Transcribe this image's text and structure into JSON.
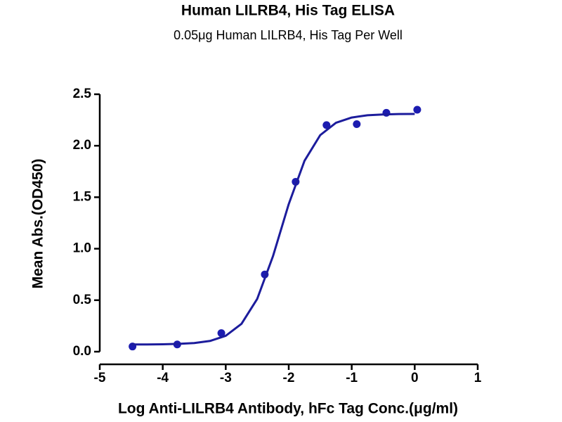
{
  "chart_data": {
    "type": "scatter",
    "title": "Human LILRB4, His Tag ELISA",
    "subtitle": "0.05μg Human LILRB4, His Tag Per Well",
    "x_label": "Log Anti-LILRB4 Antibody, hFc Tag Conc.(μg/ml)",
    "y_label": "Mean Abs.(OD450)",
    "xlim": [
      -5,
      1
    ],
    "ylim": [
      0,
      2.5
    ],
    "xticks": [
      -5,
      -4,
      -3,
      -2,
      -1,
      0,
      1
    ],
    "yticks": [
      {
        "value": 0,
        "label": "0.0"
      },
      0.5,
      {
        "value": 1,
        "label": "1.0"
      },
      1.5,
      {
        "value": 2,
        "label": "2.0"
      },
      2.5
    ],
    "series": [
      {
        "type": "scatter",
        "color": "#1c1cb0",
        "x": [
          -4.48,
          -3.77,
          -3.07,
          -2.38,
          -1.89,
          -1.4,
          -0.92,
          -0.45,
          0.04
        ],
        "values": [
          0.05,
          0.07,
          0.18,
          0.75,
          1.65,
          2.2,
          2.21,
          2.32,
          2.35
        ]
      },
      {
        "type": "line",
        "color": "#1c1c9c",
        "x": [
          -4.5,
          -4.25,
          -4,
          -3.75,
          -3.5,
          -3.25,
          -3,
          -2.75,
          -2.5,
          -2.25,
          -2,
          -1.75,
          -1.5,
          -1.25,
          -1,
          -0.75,
          -0.5,
          -0.25,
          0
        ],
        "values": [
          0.07,
          0.07,
          0.072,
          0.076,
          0.084,
          0.104,
          0.154,
          0.27,
          0.513,
          0.927,
          1.433,
          1.853,
          2.103,
          2.223,
          2.274,
          2.296,
          2.304,
          2.308,
          2.309
        ]
      }
    ]
  }
}
